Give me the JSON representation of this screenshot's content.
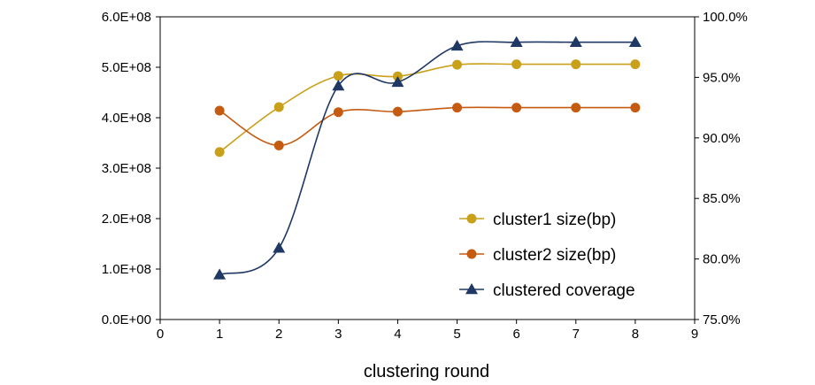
{
  "chart_data": {
    "type": "line",
    "xlabel": "clustering round",
    "xlim": [
      0,
      9
    ],
    "x_ticks": [
      "0",
      "1",
      "2",
      "3",
      "4",
      "5",
      "6",
      "7",
      "8",
      "9"
    ],
    "y_left_lim": [
      0,
      600000000
    ],
    "y_left_ticks": [
      "0.0E+00",
      "1.0E+08",
      "2.0E+08",
      "3.0E+08",
      "4.0E+08",
      "5.0E+08",
      "6.0E+08"
    ],
    "y_right_lim": [
      75,
      100
    ],
    "y_right_ticks": [
      "75.0%",
      "80.0%",
      "85.0%",
      "90.0%",
      "95.0%",
      "100.0%"
    ],
    "x": [
      1,
      2,
      3,
      4,
      5,
      6,
      7,
      8
    ],
    "series": [
      {
        "name": "cluster1 size(bp)",
        "axis": "left",
        "marker": "circle",
        "color": "#C9A01A",
        "values": [
          332000000,
          421000000,
          483000000,
          482000000,
          505000000,
          506000000,
          506000000,
          506000000
        ]
      },
      {
        "name": "cluster2 size(bp)",
        "axis": "left",
        "marker": "circle",
        "color": "#C55A11",
        "values": [
          414000000,
          345000000,
          411000000,
          412000000,
          420000000,
          420000000,
          420000000,
          420000000
        ]
      },
      {
        "name": "clustered coverage",
        "axis": "right",
        "marker": "triangle",
        "color": "#1F3864",
        "values": [
          78.7,
          80.9,
          94.3,
          94.6,
          97.6,
          97.9,
          97.9,
          97.9
        ]
      }
    ],
    "legend_position": "bottom-right inside plot",
    "grid": false
  }
}
